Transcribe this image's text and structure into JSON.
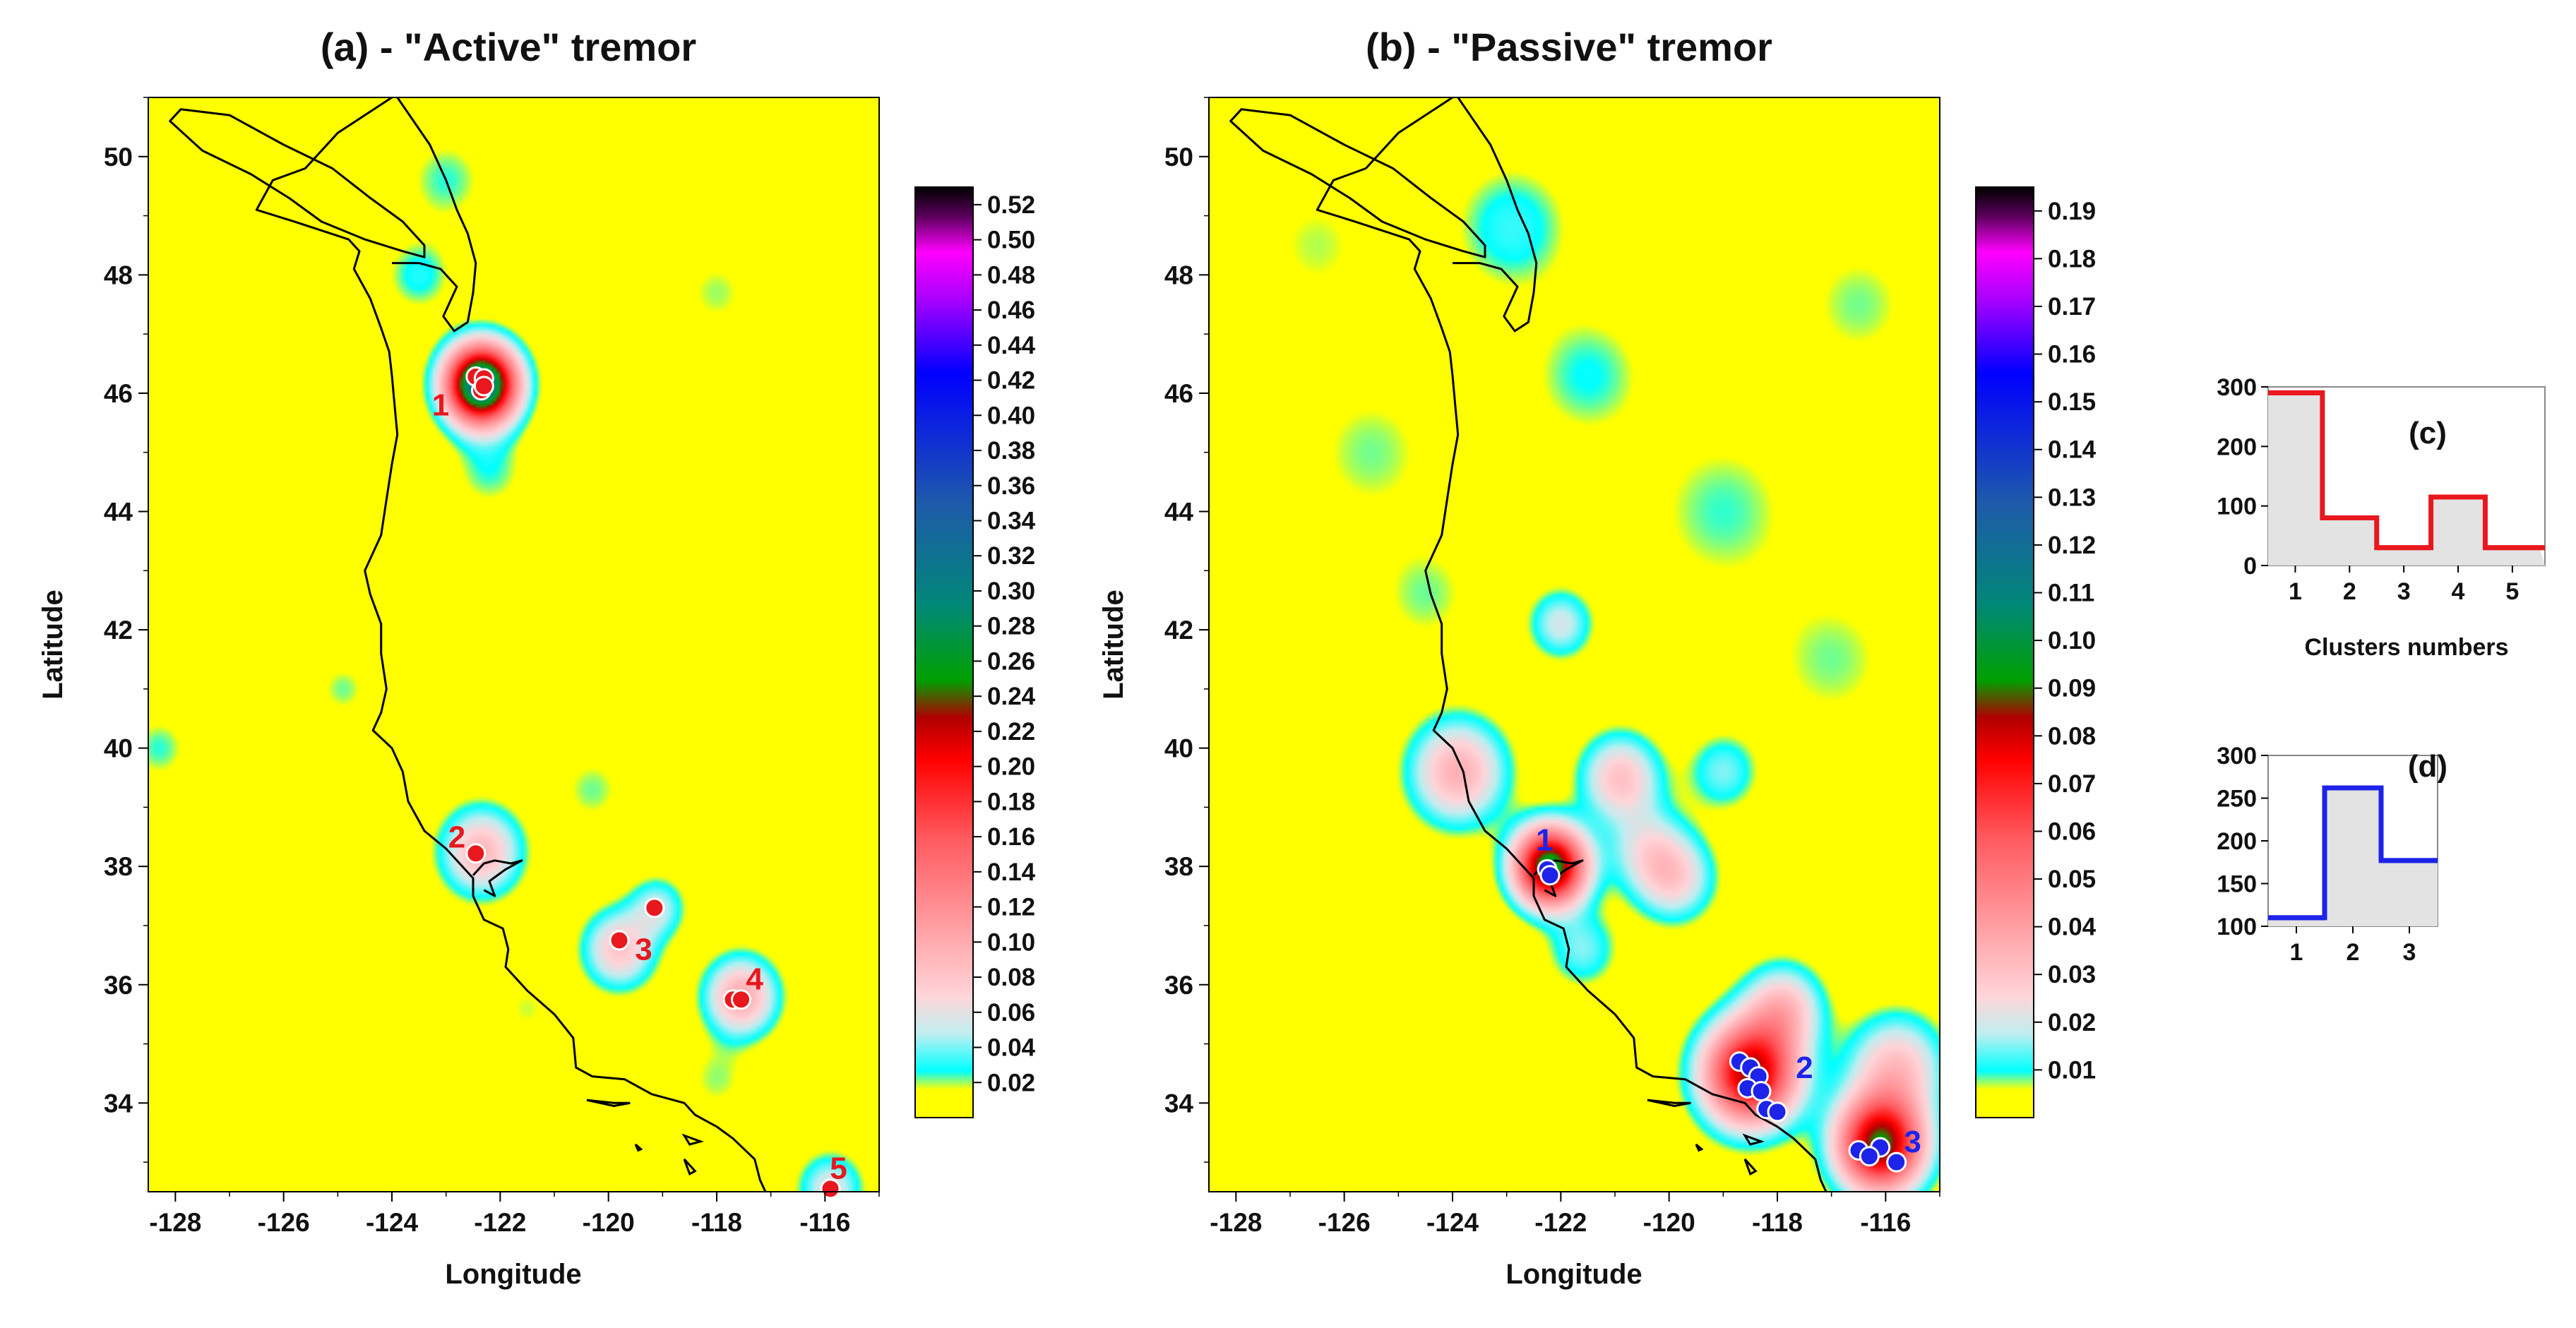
{
  "colors": {
    "background_field": "#ffff00",
    "active_marker": "#e8181e",
    "passive_marker": "#1d23e8",
    "coast": "#000000"
  },
  "chart_data": [
    {
      "type": "heatmap",
      "title": "(a) - \"Active\" tremor",
      "xlabel": "Longitude",
      "ylabel": "Latitude",
      "xlim": [
        -128.5,
        -115
      ],
      "ylim": [
        32.5,
        51
      ],
      "xticks": [
        "-128",
        "-126",
        "-124",
        "-122",
        "-120",
        "-118",
        "-116"
      ],
      "yticks": [
        "34",
        "36",
        "38",
        "40",
        "42",
        "44",
        "46",
        "48",
        "50"
      ],
      "colorbar_ticks": [
        "0.52",
        "0.50",
        "0.48",
        "0.46",
        "0.44",
        "0.42",
        "0.40",
        "0.38",
        "0.36",
        "0.34",
        "0.32",
        "0.30",
        "0.28",
        "0.26",
        "0.24",
        "0.22",
        "0.20",
        "0.18",
        "0.16",
        "0.14",
        "0.12",
        "0.10",
        "0.08",
        "0.06",
        "0.04",
        "0.02"
      ],
      "colorbar_range": [
        0,
        0.53
      ],
      "hotspots": [
        {
          "lon": -122.35,
          "lat": 46.15,
          "sigma": 0.45,
          "amp": 0.34
        },
        {
          "lon": -122.35,
          "lat": 38.25,
          "sigma": 0.5,
          "amp": 0.09
        },
        {
          "lon": -119.8,
          "lat": 36.6,
          "sigma": 0.45,
          "amp": 0.08
        },
        {
          "lon": -119.1,
          "lat": 37.3,
          "sigma": 0.35,
          "amp": 0.05
        },
        {
          "lon": -117.55,
          "lat": 35.8,
          "sigma": 0.45,
          "amp": 0.1
        },
        {
          "lon": -115.9,
          "lat": 32.55,
          "sigma": 0.4,
          "amp": 0.06
        },
        {
          "lon": -123.5,
          "lat": 48.0,
          "sigma": 0.45,
          "amp": 0.03
        },
        {
          "lon": -122.2,
          "lat": 44.7,
          "sigma": 0.5,
          "amp": 0.025
        },
        {
          "lon": -123.0,
          "lat": 49.6,
          "sigma": 0.55,
          "amp": 0.025
        },
        {
          "lon": -118.0,
          "lat": 47.7,
          "sigma": 0.5,
          "amp": 0.02
        },
        {
          "lon": -124.9,
          "lat": 41.0,
          "sigma": 0.35,
          "amp": 0.022
        },
        {
          "lon": -128.3,
          "lat": 40.0,
          "sigma": 0.4,
          "amp": 0.025
        },
        {
          "lon": -120.3,
          "lat": 39.3,
          "sigma": 0.45,
          "amp": 0.022
        },
        {
          "lon": -118.0,
          "lat": 34.4,
          "sigma": 0.45,
          "amp": 0.02
        },
        {
          "lon": -121.5,
          "lat": 35.6,
          "sigma": 0.4,
          "amp": 0.018
        }
      ],
      "clusters": [
        {
          "label": "1",
          "points": [
            [
              -122.45,
              46.28
            ],
            [
              -122.3,
              46.25
            ],
            [
              -122.35,
              46.05
            ],
            [
              -122.3,
              46.12
            ]
          ],
          "label_at": [
            -123.1,
            45.8
          ]
        },
        {
          "label": "2",
          "points": [
            [
              -122.45,
              38.22
            ]
          ],
          "label_at": [
            -122.8,
            38.5
          ]
        },
        {
          "label": "3",
          "points": [
            [
              -119.8,
              36.75
            ],
            [
              -119.15,
              37.3
            ]
          ],
          "label_at": [
            -119.35,
            36.6
          ]
        },
        {
          "label": "4",
          "points": [
            [
              -117.7,
              35.75
            ],
            [
              -117.55,
              35.75
            ]
          ],
          "label_at": [
            -117.3,
            36.1
          ]
        },
        {
          "label": "5",
          "points": [
            [
              -115.9,
              32.55
            ]
          ],
          "label_at": [
            -115.75,
            32.9
          ]
        }
      ]
    },
    {
      "type": "heatmap",
      "title": "(b) - \"Passive\" tremor",
      "xlabel": "Longitude",
      "ylabel": "Latitude",
      "xlim": [
        -128.5,
        -115
      ],
      "ylim": [
        32.5,
        51
      ],
      "xticks": [
        "-128",
        "-126",
        "-124",
        "-122",
        "-120",
        "-118",
        "-116"
      ],
      "yticks": [
        "34",
        "36",
        "38",
        "40",
        "42",
        "44",
        "46",
        "48",
        "50"
      ],
      "colorbar_ticks": [
        "0.19",
        "0.18",
        "0.17",
        "0.16",
        "0.15",
        "0.14",
        "0.13",
        "0.12",
        "0.11",
        "0.10",
        "0.09",
        "0.08",
        "0.07",
        "0.06",
        "0.05",
        "0.04",
        "0.03",
        "0.02",
        "0.01"
      ],
      "colorbar_range": [
        0,
        0.195
      ],
      "hotspots": [
        {
          "lon": -122.2,
          "lat": 38.0,
          "sigma": 0.45,
          "amp": 0.1
        },
        {
          "lon": -118.5,
          "lat": 34.5,
          "sigma": 0.6,
          "amp": 0.085
        },
        {
          "lon": -116.1,
          "lat": 33.3,
          "sigma": 0.55,
          "amp": 0.09
        },
        {
          "lon": -123.9,
          "lat": 39.6,
          "sigma": 0.6,
          "amp": 0.035
        },
        {
          "lon": -120.9,
          "lat": 39.5,
          "sigma": 0.5,
          "amp": 0.03
        },
        {
          "lon": -119.9,
          "lat": 37.8,
          "sigma": 0.5,
          "amp": 0.025
        },
        {
          "lon": -117.9,
          "lat": 35.6,
          "sigma": 0.5,
          "amp": 0.03
        },
        {
          "lon": -115.8,
          "lat": 34.6,
          "sigma": 0.6,
          "amp": 0.03
        },
        {
          "lon": -122.0,
          "lat": 42.1,
          "sigma": 0.4,
          "amp": 0.02
        },
        {
          "lon": -120.4,
          "lat": 38.3,
          "sigma": 0.5,
          "amp": 0.018
        },
        {
          "lon": -119.0,
          "lat": 39.6,
          "sigma": 0.45,
          "amp": 0.015
        },
        {
          "lon": -122.9,
          "lat": 48.8,
          "sigma": 0.8,
          "amp": 0.012
        },
        {
          "lon": -121.5,
          "lat": 46.3,
          "sigma": 0.8,
          "amp": 0.01
        },
        {
          "lon": -119.0,
          "lat": 44.0,
          "sigma": 1.0,
          "amp": 0.009
        },
        {
          "lon": -125.5,
          "lat": 45.0,
          "sigma": 0.9,
          "amp": 0.008
        },
        {
          "lon": -117.0,
          "lat": 41.5,
          "sigma": 0.9,
          "amp": 0.008
        },
        {
          "lon": -124.5,
          "lat": 42.6,
          "sigma": 0.7,
          "amp": 0.008
        },
        {
          "lon": -116.5,
          "lat": 47.5,
          "sigma": 0.8,
          "amp": 0.008
        },
        {
          "lon": -126.5,
          "lat": 48.5,
          "sigma": 0.8,
          "amp": 0.007
        },
        {
          "lon": -121.6,
          "lat": 36.6,
          "sigma": 0.45,
          "amp": 0.015
        }
      ],
      "clusters": [
        {
          "label": "1",
          "points": [
            [
              -122.25,
              37.95
            ],
            [
              -122.2,
              37.85
            ]
          ],
          "label_at": [
            -122.3,
            38.45
          ]
        },
        {
          "label": "2",
          "points": [
            [
              -118.7,
              34.7
            ],
            [
              -118.5,
              34.6
            ],
            [
              -118.35,
              34.45
            ],
            [
              -118.55,
              34.25
            ],
            [
              -118.3,
              34.2
            ],
            [
              -118.2,
              33.9
            ],
            [
              -118.0,
              33.85
            ]
          ],
          "label_at": [
            -117.5,
            34.6
          ]
        },
        {
          "label": "3",
          "points": [
            [
              -116.5,
              33.2
            ],
            [
              -116.1,
              33.25
            ],
            [
              -115.8,
              33.0
            ],
            [
              -116.3,
              33.1
            ]
          ],
          "label_at": [
            -115.5,
            33.35
          ]
        }
      ]
    },
    {
      "type": "bar",
      "title": "(c)",
      "xlabel": "Clusters numbers",
      "categories": [
        "1",
        "2",
        "3",
        "4",
        "5"
      ],
      "values": [
        290,
        80,
        30,
        115,
        30
      ],
      "ylim": [
        0,
        300
      ],
      "yticks": [
        "0",
        "100",
        "200",
        "300"
      ],
      "style": "step"
    },
    {
      "type": "bar",
      "title": "(d)",
      "xlabel": "",
      "categories": [
        "1",
        "2",
        "3"
      ],
      "values": [
        110,
        262,
        177
      ],
      "ylim": [
        100,
        300
      ],
      "yticks": [
        "100",
        "150",
        "200",
        "250",
        "300"
      ],
      "style": "step"
    }
  ]
}
